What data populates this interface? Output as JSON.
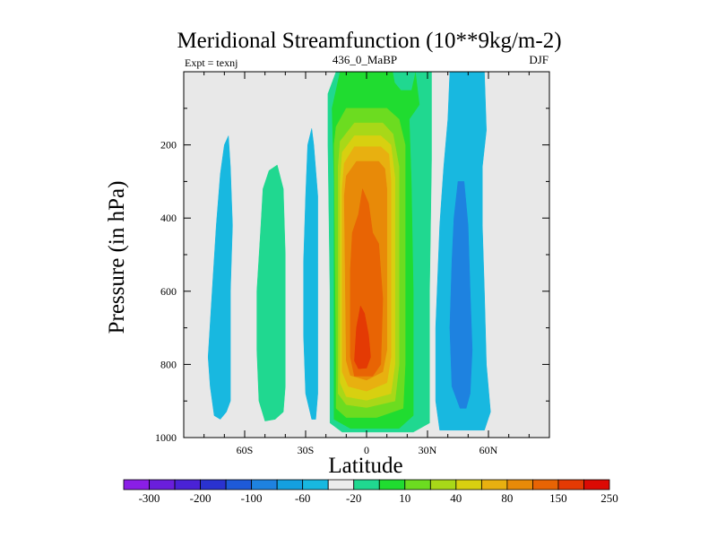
{
  "chart_data": {
    "type": "contour",
    "title": "Meridional Streamfunction (10**9kg/m-2)",
    "subtitle_left": "Expt = texnj",
    "subtitle_center": "436_0_MaBP",
    "subtitle_right": "DJF",
    "xlabel": "Latitude",
    "ylabel": "Pressure (in hPa)",
    "x_range": [
      -90,
      90
    ],
    "y_range": [
      0,
      1000
    ],
    "y_inverted": true,
    "x_ticks": [
      {
        "value": -60,
        "label": "60S"
      },
      {
        "value": -30,
        "label": "30S"
      },
      {
        "value": 0,
        "label": "0"
      },
      {
        "value": 30,
        "label": "30N"
      },
      {
        "value": 60,
        "label": "60N"
      }
    ],
    "y_ticks": [
      {
        "value": 200,
        "label": "200"
      },
      {
        "value": 400,
        "label": "400"
      },
      {
        "value": 600,
        "label": "600"
      },
      {
        "value": 800,
        "label": "800"
      },
      {
        "value": 1000,
        "label": "1000"
      }
    ],
    "background_color": "#e8e8e8",
    "colorbar": {
      "colors": [
        "#8a1ee6",
        "#6a1edc",
        "#4a22d6",
        "#2a32d0",
        "#1e5ad8",
        "#1e82e0",
        "#14a0e0",
        "#18b8e0",
        "#ececec",
        "#20d890",
        "#20dc30",
        "#6cdc20",
        "#a8d818",
        "#d8d010",
        "#e8b010",
        "#e88a08",
        "#e86404",
        "#e43a04",
        "#dc0a04"
      ],
      "labels": [
        "-300",
        "-200",
        "-100",
        "-60",
        "-20",
        "10",
        "40",
        "80",
        "150",
        "250"
      ]
    },
    "contour_regions": [
      {
        "name": "contour-sh-polar-cell",
        "color": "#18b8e0",
        "polygon": [
          [
            -75,
            940
          ],
          [
            -77,
            860
          ],
          [
            -78,
            780
          ],
          [
            -76,
            600
          ],
          [
            -74,
            420
          ],
          [
            -72,
            280
          ],
          [
            -70,
            200
          ],
          [
            -68,
            175
          ],
          [
            -67,
            260
          ],
          [
            -66,
            420
          ],
          [
            -67,
            600
          ],
          [
            -67,
            760
          ],
          [
            -67,
            900
          ],
          [
            -69,
            930
          ],
          [
            -72,
            950
          ]
        ]
      },
      {
        "name": "contour-sh-ferrel-cell",
        "color": "#20d890",
        "polygon": [
          [
            -50,
            955
          ],
          [
            -53,
            900
          ],
          [
            -54,
            760
          ],
          [
            -54,
            600
          ],
          [
            -52,
            420
          ],
          [
            -51,
            320
          ],
          [
            -48,
            270
          ],
          [
            -44,
            255
          ],
          [
            -41,
            320
          ],
          [
            -40,
            500
          ],
          [
            -40,
            700
          ],
          [
            -40,
            860
          ],
          [
            -41,
            930
          ],
          [
            -45,
            950
          ]
        ]
      },
      {
        "name": "contour-sh-thin-cell",
        "color": "#18b8e0",
        "polygon": [
          [
            -27,
            950
          ],
          [
            -30,
            880
          ],
          [
            -31,
            720
          ],
          [
            -31,
            520
          ],
          [
            -30,
            340
          ],
          [
            -29,
            200
          ],
          [
            -27,
            155
          ],
          [
            -26,
            200
          ],
          [
            -24,
            340
          ],
          [
            -24,
            520
          ],
          [
            -24,
            720
          ],
          [
            -24,
            880
          ],
          [
            -25,
            950
          ]
        ]
      },
      {
        "name": "contour-nh-outer-cell",
        "color": "#18b8e0",
        "polygon": [
          [
            41,
            0
          ],
          [
            54,
            0
          ],
          [
            58,
            0
          ],
          [
            59,
            160
          ],
          [
            57,
            260
          ],
          [
            57,
            420
          ],
          [
            58,
            600
          ],
          [
            59,
            800
          ],
          [
            61,
            930
          ],
          [
            58,
            980
          ],
          [
            36,
            980
          ],
          [
            34,
            900
          ],
          [
            34,
            700
          ],
          [
            36,
            420
          ],
          [
            38,
            260
          ],
          [
            40,
            130
          ]
        ]
      },
      {
        "name": "contour-nh-inner-cell",
        "color": "#1e82e0",
        "polygon": [
          [
            46,
            920
          ],
          [
            42,
            860
          ],
          [
            41,
            700
          ],
          [
            42,
            520
          ],
          [
            43,
            400
          ],
          [
            45,
            300
          ],
          [
            48,
            300
          ],
          [
            50,
            420
          ],
          [
            51,
            600
          ],
          [
            52,
            760
          ],
          [
            51,
            880
          ],
          [
            49,
            920
          ]
        ]
      },
      {
        "name": "contour-hadley-10",
        "color": "#20d890",
        "polygon": [
          [
            -15,
            0
          ],
          [
            32,
            0
          ],
          [
            32,
            240
          ],
          [
            31,
            600
          ],
          [
            31,
            960
          ],
          [
            23,
            985
          ],
          [
            -12,
            985
          ],
          [
            -18,
            960
          ],
          [
            -18,
            600
          ],
          [
            -19,
            200
          ],
          [
            -19,
            60
          ]
        ]
      },
      {
        "name": "contour-hadley-40",
        "color": "#20dc30",
        "polygon": [
          [
            -13,
            0
          ],
          [
            13,
            0
          ],
          [
            18,
            0
          ],
          [
            24,
            0
          ],
          [
            26,
            90
          ],
          [
            21,
            130
          ],
          [
            22,
            300
          ],
          [
            23,
            600
          ],
          [
            23,
            940
          ],
          [
            16,
            975
          ],
          [
            -8,
            975
          ],
          [
            -16,
            950
          ],
          [
            -16,
            600
          ],
          [
            -16,
            300
          ],
          [
            -17,
            100
          ]
        ]
      },
      {
        "name": "contour-hadley-top-patch",
        "color": "#20d890",
        "polygon": [
          [
            13,
            0
          ],
          [
            24,
            0
          ],
          [
            22,
            50
          ],
          [
            17,
            50
          ],
          [
            14,
            30
          ]
        ]
      },
      {
        "name": "contour-hadley-60",
        "color": "#6cdc20",
        "polygon": [
          [
            -15,
            150
          ],
          [
            -10,
            100
          ],
          [
            10,
            100
          ],
          [
            16,
            130
          ],
          [
            19,
            200
          ],
          [
            19,
            800
          ],
          [
            18,
            920
          ],
          [
            5,
            945
          ],
          [
            -10,
            945
          ],
          [
            -15,
            920
          ],
          [
            -15,
            800
          ],
          [
            -16,
            200
          ]
        ]
      },
      {
        "name": "contour-hadley-80",
        "color": "#a8d818",
        "polygon": [
          [
            -13,
            190
          ],
          [
            -6,
            140
          ],
          [
            8,
            140
          ],
          [
            13,
            170
          ],
          [
            16,
            260
          ],
          [
            16,
            800
          ],
          [
            14,
            900
          ],
          [
            0,
            918
          ],
          [
            -10,
            910
          ],
          [
            -14,
            880
          ],
          [
            -14,
            500
          ],
          [
            -14,
            260
          ]
        ]
      },
      {
        "name": "contour-hadley-100",
        "color": "#d8d010",
        "polygon": [
          [
            -12,
            220
          ],
          [
            -6,
            175
          ],
          [
            7,
            175
          ],
          [
            12,
            200
          ],
          [
            14,
            290
          ],
          [
            14,
            800
          ],
          [
            12,
            880
          ],
          [
            0,
            898
          ],
          [
            -10,
            888
          ],
          [
            -13,
            850
          ],
          [
            -13,
            300
          ]
        ]
      },
      {
        "name": "contour-hadley-120",
        "color": "#e8b010",
        "polygon": [
          [
            -11,
            250
          ],
          [
            -6,
            205
          ],
          [
            7,
            205
          ],
          [
            11,
            225
          ],
          [
            12,
            300
          ],
          [
            12,
            780
          ],
          [
            10,
            850
          ],
          [
            0,
            873
          ],
          [
            -9,
            860
          ],
          [
            -12,
            820
          ],
          [
            -12,
            320
          ]
        ]
      },
      {
        "name": "contour-hadley-150",
        "color": "#e88a08",
        "polygon": [
          [
            -10,
            285
          ],
          [
            -5,
            245
          ],
          [
            6,
            245
          ],
          [
            9,
            265
          ],
          [
            10,
            320
          ],
          [
            10,
            760
          ],
          [
            8,
            820
          ],
          [
            0,
            843
          ],
          [
            -8,
            830
          ],
          [
            -10,
            790
          ],
          [
            -11,
            340
          ]
        ]
      },
      {
        "name": "contour-hadley-200",
        "color": "#e86404",
        "polygon": [
          [
            -2,
            320
          ],
          [
            1,
            360
          ],
          [
            3,
            440
          ],
          [
            6,
            470
          ],
          [
            8,
            620
          ],
          [
            7,
            800
          ],
          [
            3,
            832
          ],
          [
            -6,
            832
          ],
          [
            -8,
            780
          ],
          [
            -8,
            540
          ],
          [
            -7,
            440
          ],
          [
            -4,
            390
          ]
        ]
      },
      {
        "name": "contour-hadley-250",
        "color": "#e43a04",
        "polygon": [
          [
            -3,
            640
          ],
          [
            -1,
            660
          ],
          [
            1,
            720
          ],
          [
            2,
            780
          ],
          [
            0,
            810
          ],
          [
            -4,
            812
          ],
          [
            -6,
            790
          ],
          [
            -5,
            700
          ]
        ]
      }
    ]
  }
}
